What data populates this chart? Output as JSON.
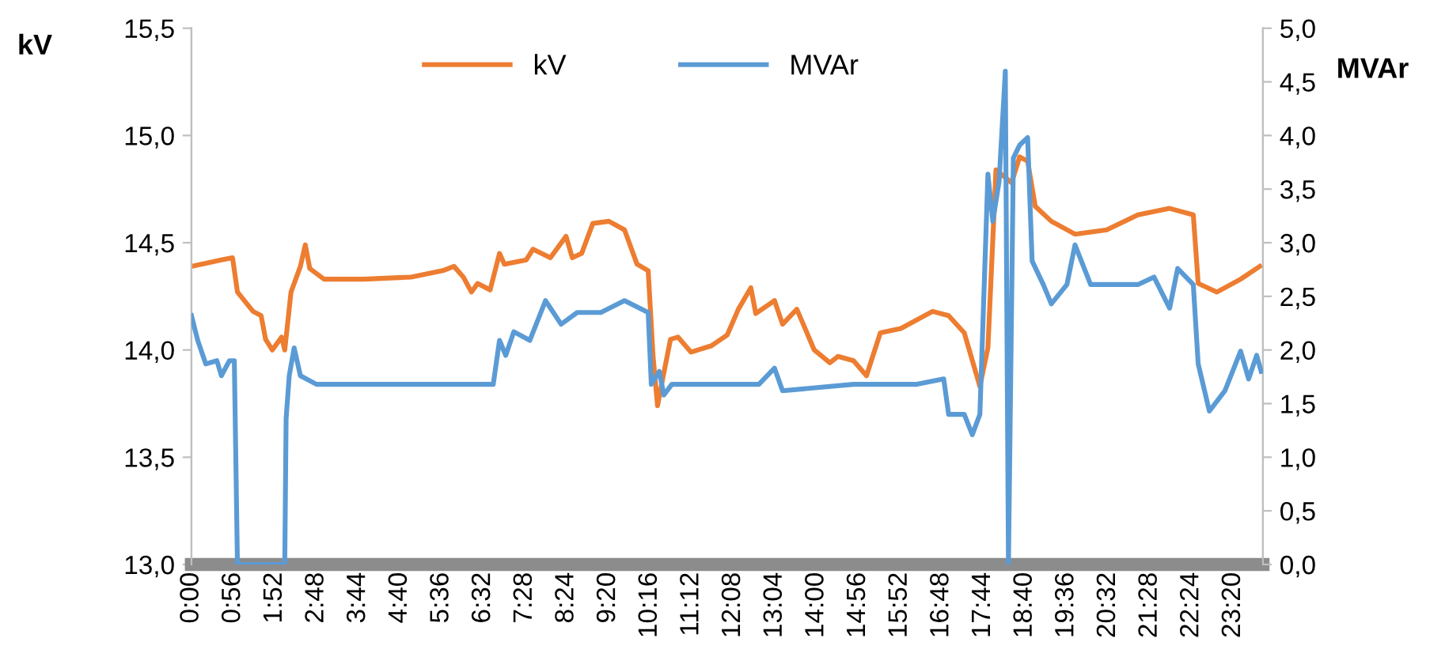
{
  "chart_data": {
    "type": "line",
    "ylabel": "kV",
    "y2label": "MVAr",
    "legend": "top",
    "grid": false,
    "marker": "none",
    "line_style": "solid",
    "xlim": [
      0,
      24
    ],
    "xticks": [
      {
        "value": 0,
        "label": "0:00"
      },
      {
        "value": 0.9333,
        "label": "0:56"
      },
      {
        "value": 1.8667,
        "label": "1:52"
      },
      {
        "value": 2.8,
        "label": "2:48"
      },
      {
        "value": 3.7333,
        "label": "3:44"
      },
      {
        "value": 4.6667,
        "label": "4:40"
      },
      {
        "value": 5.6,
        "label": "5:36"
      },
      {
        "value": 6.5333,
        "label": "6:32"
      },
      {
        "value": 7.4667,
        "label": "7:28"
      },
      {
        "value": 8.4,
        "label": "8:24"
      },
      {
        "value": 9.3333,
        "label": "9:20"
      },
      {
        "value": 10.2667,
        "label": "10:16"
      },
      {
        "value": 11.2,
        "label": "11:12"
      },
      {
        "value": 12.1333,
        "label": "12:08"
      },
      {
        "value": 13.0667,
        "label": "13:04"
      },
      {
        "value": 14,
        "label": "14:00"
      },
      {
        "value": 14.9333,
        "label": "14:56"
      },
      {
        "value": 15.8667,
        "label": "15:52"
      },
      {
        "value": 16.8,
        "label": "16:48"
      },
      {
        "value": 17.7333,
        "label": "17:44"
      },
      {
        "value": 18.6667,
        "label": "18:40"
      },
      {
        "value": 19.6,
        "label": "19:36"
      },
      {
        "value": 20.5333,
        "label": "20:32"
      },
      {
        "value": 21.4667,
        "label": "21:28"
      },
      {
        "value": 22.4,
        "label": "22:24"
      },
      {
        "value": 23.3333,
        "label": "23:20"
      }
    ],
    "ylim": [
      13,
      15.5
    ],
    "yticks": [
      {
        "value": 13,
        "label": "13,0"
      },
      {
        "value": 13.5,
        "label": "13,5"
      },
      {
        "value": 14,
        "label": "14,0"
      },
      {
        "value": 14.5,
        "label": "14,5"
      },
      {
        "value": 15,
        "label": "15,0"
      },
      {
        "value": 15.5,
        "label": "15,5"
      }
    ],
    "y2lim": [
      0,
      5
    ],
    "y2ticks": [
      {
        "value": 0,
        "label": "0,0"
      },
      {
        "value": 0.5,
        "label": "0,5"
      },
      {
        "value": 1,
        "label": "1,0"
      },
      {
        "value": 1.5,
        "label": "1,5"
      },
      {
        "value": 2,
        "label": "2,0"
      },
      {
        "value": 2.5,
        "label": "2,5"
      },
      {
        "value": 3,
        "label": "3,0"
      },
      {
        "value": 3.5,
        "label": "3,5"
      },
      {
        "value": 4,
        "label": "4,0"
      },
      {
        "value": 4.5,
        "label": "4,5"
      },
      {
        "value": 5,
        "label": "5,0"
      }
    ],
    "series": [
      {
        "name": "kV",
        "color": "#ed7d31",
        "x": [
          0.0,
          0.67,
          0.92,
          1.03,
          1.38,
          1.56,
          1.66,
          1.81,
          2.02,
          2.09,
          2.23,
          2.44,
          2.55,
          2.65,
          2.97,
          3.86,
          4.92,
          5.63,
          5.88,
          6.09,
          6.27,
          6.41,
          6.69,
          6.9,
          7.01,
          7.5,
          7.65,
          8.04,
          8.39,
          8.53,
          8.74,
          8.99,
          9.35,
          9.7,
          9.98,
          10.23,
          10.34,
          10.44,
          10.55,
          10.73,
          10.9,
          11.19,
          11.65,
          12.0,
          12.25,
          12.53,
          12.64,
          13.06,
          13.24,
          13.56,
          13.95,
          14.3,
          14.48,
          14.83,
          15.12,
          15.43,
          15.89,
          16.6,
          16.96,
          17.31,
          17.66,
          17.84,
          18.02,
          18.37,
          18.55,
          18.73,
          18.9,
          19.26,
          19.79,
          20.5,
          21.2,
          21.91,
          22.44,
          22.55,
          22.97,
          23.5,
          23.93
        ],
        "values": [
          14.39,
          14.42,
          14.43,
          14.27,
          14.18,
          14.16,
          14.05,
          14.0,
          14.06,
          14.0,
          14.27,
          14.39,
          14.49,
          14.38,
          14.33,
          14.33,
          14.34,
          14.37,
          14.39,
          14.34,
          14.27,
          14.31,
          14.28,
          14.45,
          14.4,
          14.42,
          14.47,
          14.43,
          14.53,
          14.43,
          14.45,
          14.59,
          14.6,
          14.56,
          14.4,
          14.37,
          13.97,
          13.74,
          13.86,
          14.05,
          14.06,
          13.99,
          14.02,
          14.07,
          14.19,
          14.29,
          14.17,
          14.23,
          14.12,
          14.19,
          14.0,
          13.94,
          13.97,
          13.95,
          13.88,
          14.08,
          14.1,
          14.18,
          14.16,
          14.08,
          13.83,
          14.01,
          14.84,
          14.78,
          14.9,
          14.88,
          14.67,
          14.6,
          14.54,
          14.56,
          14.63,
          14.66,
          14.63,
          14.31,
          14.27,
          14.33,
          14.39
        ]
      },
      {
        "name": "MVAr",
        "color": "#5b9bd5",
        "axis": "y2",
        "x": [
          0.0,
          0.14,
          0.32,
          0.57,
          0.67,
          0.85,
          0.96,
          1.03,
          2.09,
          2.12,
          2.19,
          2.3,
          2.44,
          2.8,
          3.5,
          4.92,
          6.34,
          6.76,
          6.9,
          7.04,
          7.22,
          7.58,
          7.93,
          8.28,
          8.64,
          9.17,
          9.7,
          10.23,
          10.3,
          10.48,
          10.58,
          10.76,
          12.71,
          13.06,
          13.24,
          14.83,
          16.25,
          16.85,
          16.96,
          17.31,
          17.49,
          17.66,
          17.84,
          17.95,
          18.09,
          18.23,
          18.3,
          18.41,
          18.55,
          18.73,
          18.83,
          19.08,
          19.26,
          19.61,
          19.79,
          20.14,
          21.2,
          21.56,
          21.91,
          22.09,
          22.44,
          22.55,
          22.8,
          23.15,
          23.5,
          23.68,
          23.86,
          23.96
        ],
        "values": [
          2.32,
          2.09,
          1.87,
          1.9,
          1.76,
          1.9,
          1.9,
          0,
          0,
          1.36,
          1.76,
          2.02,
          1.76,
          1.68,
          1.68,
          1.68,
          1.68,
          1.68,
          2.09,
          1.95,
          2.17,
          2.09,
          2.46,
          2.24,
          2.35,
          2.35,
          2.46,
          2.35,
          1.68,
          1.8,
          1.58,
          1.68,
          1.68,
          1.83,
          1.62,
          1.68,
          1.68,
          1.73,
          1.4,
          1.4,
          1.21,
          1.4,
          3.64,
          3.2,
          3.57,
          4.6,
          0,
          3.79,
          3.91,
          3.98,
          2.83,
          2.61,
          2.43,
          2.61,
          2.98,
          2.61,
          2.61,
          2.68,
          2.39,
          2.76,
          2.61,
          1.87,
          1.43,
          1.62,
          1.99,
          1.73,
          1.95,
          1.8
        ]
      }
    ]
  }
}
